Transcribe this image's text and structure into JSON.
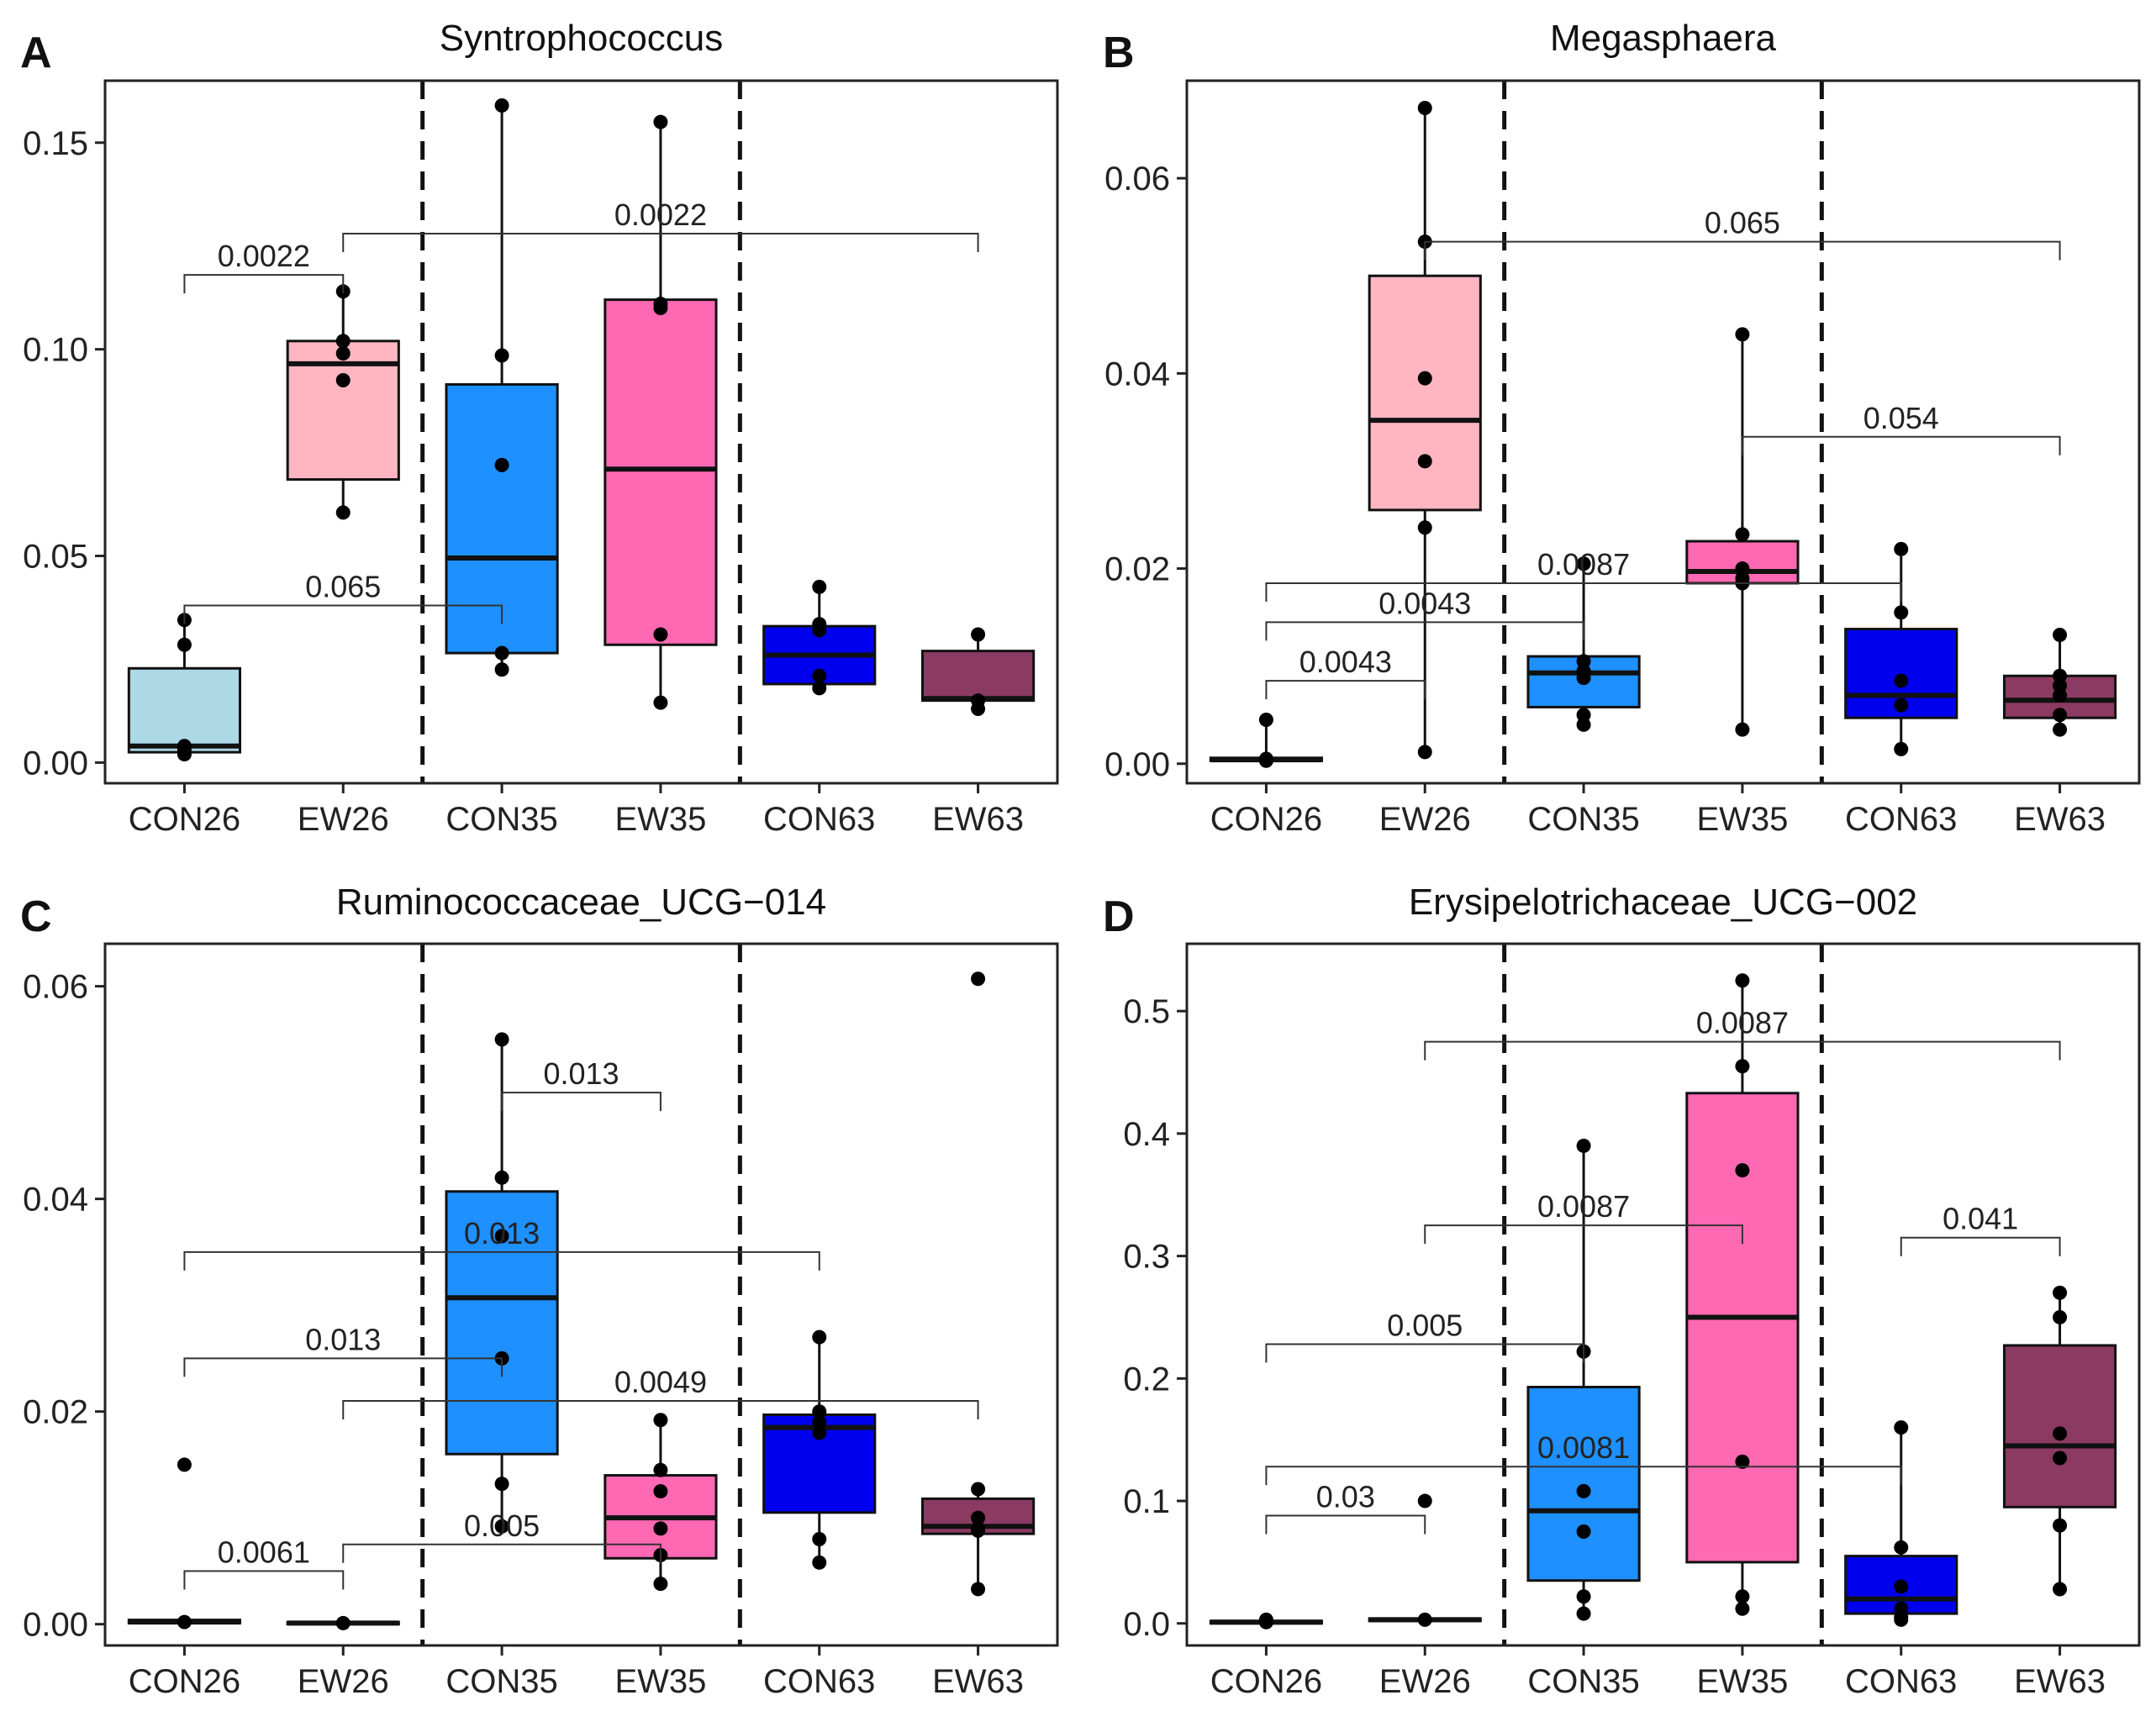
{
  "chart_data": [
    {
      "type": "box",
      "panel": "A",
      "title": "Syntrophococcus",
      "categories": [
        "CON26",
        "EW26",
        "CON35",
        "EW35",
        "CON63",
        "EW63"
      ],
      "colors": [
        "#add8e6",
        "#ffb6c1",
        "#1e90ff",
        "#ff69b4",
        "#0000ee",
        "#8b3a62"
      ],
      "ylim": [
        -0.005,
        0.165
      ],
      "yticks": [
        "0.00",
        "0.05",
        "0.10",
        "0.15"
      ],
      "ytick_values": [
        0,
        0.05,
        0.1,
        0.15
      ],
      "boxes": [
        {
          "q1": 0.0025,
          "median": 0.004,
          "q3": 0.0228,
          "wlo": 0.002,
          "whi": 0.0345
        },
        {
          "q1": 0.0685,
          "median": 0.0965,
          "q3": 0.102,
          "wlo": 0.0605,
          "whi": 0.114
        },
        {
          "q1": 0.0265,
          "median": 0.0495,
          "q3": 0.0915,
          "wlo": 0.0225,
          "whi": 0.159
        },
        {
          "q1": 0.0285,
          "median": 0.071,
          "q3": 0.112,
          "wlo": 0.0145,
          "whi": 0.155
        },
        {
          "q1": 0.019,
          "median": 0.026,
          "q3": 0.033,
          "wlo": 0.0175,
          "whi": 0.0425
        },
        {
          "q1": 0.015,
          "median": 0.0155,
          "q3": 0.027,
          "wlo": 0.013,
          "whi": 0.031
        }
      ],
      "points": [
        [
          0.0345,
          0.0285,
          0.004,
          0.003,
          0.002
        ],
        [
          0.114,
          0.102,
          0.099,
          0.0925,
          0.0605
        ],
        [
          0.159,
          0.0985,
          0.072,
          0.0265,
          0.0225
        ],
        [
          0.155,
          0.111,
          0.11,
          0.031,
          0.0145
        ],
        [
          0.0425,
          0.0335,
          0.032,
          0.021,
          0.018
        ],
        [
          0.031,
          0.015,
          0.013
        ]
      ],
      "comparisons": [
        {
          "from": 0,
          "to": 1,
          "y": 0.118,
          "label": "0.0022"
        },
        {
          "from": 1,
          "to": 5,
          "y": 0.128,
          "label": "0.0022"
        },
        {
          "from": 0,
          "to": 2,
          "y": 0.038,
          "label": "0.065"
        }
      ]
    },
    {
      "type": "box",
      "panel": "B",
      "title": "Megasphaera",
      "categories": [
        "CON26",
        "EW26",
        "CON35",
        "EW35",
        "CON63",
        "EW63"
      ],
      "colors": [
        "#add8e6",
        "#ffb6c1",
        "#1e90ff",
        "#ff69b4",
        "#0000ee",
        "#8b3a62"
      ],
      "ylim": [
        -0.002,
        0.07
      ],
      "yticks": [
        "0.00",
        "0.02",
        "0.04",
        "0.06"
      ],
      "ytick_values": [
        0,
        0.02,
        0.04,
        0.06
      ],
      "boxes": [
        {
          "q1": 0.0003,
          "median": 0.0004,
          "q3": 0.0006,
          "wlo": 0.0002,
          "whi": 0.0045
        },
        {
          "q1": 0.026,
          "median": 0.0352,
          "q3": 0.05,
          "wlo": 0.0012,
          "whi": 0.0672
        },
        {
          "q1": 0.0058,
          "median": 0.0093,
          "q3": 0.011,
          "wlo": 0.004,
          "whi": 0.0205
        },
        {
          "q1": 0.0185,
          "median": 0.0197,
          "q3": 0.0228,
          "wlo": 0.0035,
          "whi": 0.044
        },
        {
          "q1": 0.0047,
          "median": 0.007,
          "q3": 0.0138,
          "wlo": 0.0015,
          "whi": 0.022
        },
        {
          "q1": 0.0047,
          "median": 0.0065,
          "q3": 0.009,
          "wlo": 0.0035,
          "whi": 0.0132
        }
      ],
      "points": [
        [
          0.0045,
          0.0005,
          0.0003
        ],
        [
          0.0672,
          0.0535,
          0.0395,
          0.031,
          0.0242,
          0.0012
        ],
        [
          0.0205,
          0.0105,
          0.0095,
          0.0088,
          0.005,
          0.004
        ],
        [
          0.044,
          0.0235,
          0.02,
          0.019,
          0.0185,
          0.0035
        ],
        [
          0.022,
          0.0155,
          0.0085,
          0.006,
          0.0015
        ],
        [
          0.0132,
          0.009,
          0.008,
          0.007,
          0.005,
          0.0035
        ]
      ],
      "comparisons": [
        {
          "from": 1,
          "to": 5,
          "y": 0.0535,
          "label": "0.065"
        },
        {
          "from": 3,
          "to": 5,
          "y": 0.0335,
          "label": "0.054"
        },
        {
          "from": 0,
          "to": 4,
          "y": 0.0185,
          "label": "0.0087"
        },
        {
          "from": 0,
          "to": 2,
          "y": 0.0145,
          "label": "0.0043"
        },
        {
          "from": 0,
          "to": 1,
          "y": 0.0085,
          "label": "0.0043"
        }
      ]
    },
    {
      "type": "box",
      "panel": "C",
      "title": "Ruminococcaceae_UCG−014",
      "categories": [
        "CON26",
        "EW26",
        "CON35",
        "EW35",
        "CON63",
        "EW63"
      ],
      "colors": [
        "#add8e6",
        "#ffb6c1",
        "#1e90ff",
        "#ff69b4",
        "#0000ee",
        "#8b3a62"
      ],
      "ylim": [
        -0.002,
        0.064
      ],
      "yticks": [
        "0.00",
        "0.02",
        "0.04",
        "0.06"
      ],
      "ytick_values": [
        0,
        0.02,
        0.04,
        0.06
      ],
      "boxes": [
        {
          "q1": 0.0001,
          "median": 0.0002,
          "q3": 0.0004,
          "wlo": 0.0001,
          "whi": 0.0005
        },
        {
          "q1": 0.0,
          "median": 0.0001,
          "q3": 0.0002,
          "wlo": 0.0,
          "whi": 0.0003
        },
        {
          "q1": 0.016,
          "median": 0.0307,
          "q3": 0.0407,
          "wlo": 0.0092,
          "whi": 0.055
        },
        {
          "q1": 0.0062,
          "median": 0.01,
          "q3": 0.014,
          "wlo": 0.0038,
          "whi": 0.0192
        },
        {
          "q1": 0.0105,
          "median": 0.0185,
          "q3": 0.0197,
          "wlo": 0.0058,
          "whi": 0.027
        },
        {
          "q1": 0.0085,
          "median": 0.0092,
          "q3": 0.0118,
          "wlo": 0.0033,
          "whi": 0.0127
        }
      ],
      "points": [
        [
          0.015,
          0.0002
        ],
        [
          0.0001
        ],
        [
          0.055,
          0.042,
          0.0365,
          0.025,
          0.0132,
          0.0092
        ],
        [
          0.0192,
          0.0145,
          0.0125,
          0.009,
          0.0065,
          0.0038
        ],
        [
          0.027,
          0.02,
          0.019,
          0.018,
          0.008,
          0.0058
        ],
        [
          0.0607,
          0.0127,
          0.01,
          0.009,
          0.0088,
          0.0033
        ]
      ],
      "comparisons": [
        {
          "from": 2,
          "to": 3,
          "y": 0.05,
          "label": "0.013"
        },
        {
          "from": 0,
          "to": 4,
          "y": 0.035,
          "label": "0.013"
        },
        {
          "from": 0,
          "to": 2,
          "y": 0.025,
          "label": "0.013"
        },
        {
          "from": 1,
          "to": 5,
          "y": 0.021,
          "label": "0.0049"
        },
        {
          "from": 1,
          "to": 3,
          "y": 0.0075,
          "label": "0.005"
        },
        {
          "from": 0,
          "to": 1,
          "y": 0.005,
          "label": "0.0061"
        }
      ]
    },
    {
      "type": "box",
      "panel": "D",
      "title": "Erysipelotrichaceae_UCG−002",
      "categories": [
        "CON26",
        "EW26",
        "CON35",
        "EW35",
        "CON63",
        "EW63"
      ],
      "colors": [
        "#add8e6",
        "#ffb6c1",
        "#1e90ff",
        "#ff69b4",
        "#0000ee",
        "#8b3a62"
      ],
      "ylim": [
        -0.018,
        0.555
      ],
      "yticks": [
        "0.0",
        "0.1",
        "0.2",
        "0.3",
        "0.4",
        "0.5"
      ],
      "ytick_values": [
        0,
        0.1,
        0.2,
        0.3,
        0.4,
        0.5
      ],
      "boxes": [
        {
          "q1": 0.0,
          "median": 0.001,
          "q3": 0.002,
          "wlo": 0.0,
          "whi": 0.003
        },
        {
          "q1": 0.002,
          "median": 0.003,
          "q3": 0.004,
          "wlo": 0.001,
          "whi": 0.005
        },
        {
          "q1": 0.035,
          "median": 0.092,
          "q3": 0.193,
          "wlo": 0.008,
          "whi": 0.39
        },
        {
          "q1": 0.05,
          "median": 0.25,
          "q3": 0.433,
          "wlo": 0.012,
          "whi": 0.525
        },
        {
          "q1": 0.008,
          "median": 0.02,
          "q3": 0.055,
          "wlo": 0.003,
          "whi": 0.16
        },
        {
          "q1": 0.095,
          "median": 0.145,
          "q3": 0.227,
          "wlo": 0.028,
          "whi": 0.27
        }
      ],
      "points": [
        [
          0.003,
          0.001
        ],
        [
          0.1,
          0.003
        ],
        [
          0.39,
          0.222,
          0.108,
          0.075,
          0.022,
          0.008
        ],
        [
          0.525,
          0.455,
          0.37,
          0.132,
          0.022,
          0.012
        ],
        [
          0.16,
          0.062,
          0.03,
          0.012,
          0.005,
          0.003
        ],
        [
          0.27,
          0.25,
          0.155,
          0.135,
          0.08,
          0.028
        ]
      ],
      "comparisons": [
        {
          "from": 1,
          "to": 5,
          "y": 0.475,
          "label": "0.0087"
        },
        {
          "from": 1,
          "to": 3,
          "y": 0.325,
          "label": "0.0087"
        },
        {
          "from": 4,
          "to": 5,
          "y": 0.315,
          "label": "0.041"
        },
        {
          "from": 0,
          "to": 2,
          "y": 0.228,
          "label": "0.005"
        },
        {
          "from": 0,
          "to": 4,
          "y": 0.128,
          "label": "0.0081"
        },
        {
          "from": 0,
          "to": 1,
          "y": 0.088,
          "label": "0.03"
        }
      ]
    }
  ]
}
